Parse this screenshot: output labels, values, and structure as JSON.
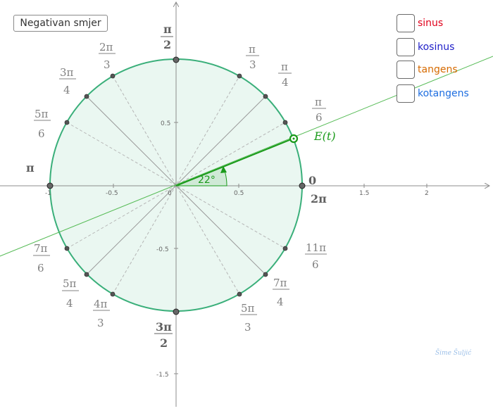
{
  "button": {
    "label": "Negativan smjer"
  },
  "checkboxes": [
    {
      "label": "sinus",
      "color": "#e0001b",
      "checked": false
    },
    {
      "label": "kosinus",
      "color": "#2020c8",
      "checked": false
    },
    {
      "label": "tangens",
      "color": "#d66a00",
      "checked": false
    },
    {
      "label": "kotangens",
      "color": "#1e6ee0",
      "checked": false
    }
  ],
  "axes": {
    "x_ticks": [
      "-1",
      "-0.5",
      "0",
      "0.5",
      "1.5",
      "2"
    ],
    "y_ticks": [
      "0.5",
      "-0.5",
      "-1.5"
    ]
  },
  "angle_labels": {
    "zero": "0",
    "pi": "π",
    "two_pi_num": "2π",
    "half_pi_num": "π",
    "half_pi_den": "2",
    "three_half_pi_num": "3π",
    "three_half_pi_den": "2",
    "pi_6": {
      "num": "π",
      "den": "6"
    },
    "pi_4": {
      "num": "π",
      "den": "4"
    },
    "pi_3": {
      "num": "π",
      "den": "3"
    },
    "two_pi_3": {
      "num": "2π",
      "den": "3"
    },
    "three_pi_4": {
      "num": "3π",
      "den": "4"
    },
    "five_pi_6": {
      "num": "5π",
      "den": "6"
    },
    "seven_pi_6": {
      "num": "7π",
      "den": "6"
    },
    "five_pi_4": {
      "num": "5π",
      "den": "4"
    },
    "four_pi_3": {
      "num": "4π",
      "den": "3"
    },
    "five_pi_3": {
      "num": "5π",
      "den": "3"
    },
    "seven_pi_4": {
      "num": "7π",
      "den": "4"
    },
    "eleven_pi_6": {
      "num": "11π",
      "den": "6"
    }
  },
  "point": {
    "label": "E(t)",
    "angle_text": "22°",
    "angle_deg": 22
  },
  "signature": "Šime Šuljić",
  "colors": {
    "circle": "#3aaf7a",
    "circle_fill": "#eaf7f1",
    "point": "#1a9a1a",
    "tangent_line": "#55bb55",
    "axis": "#8c8c8c"
  }
}
